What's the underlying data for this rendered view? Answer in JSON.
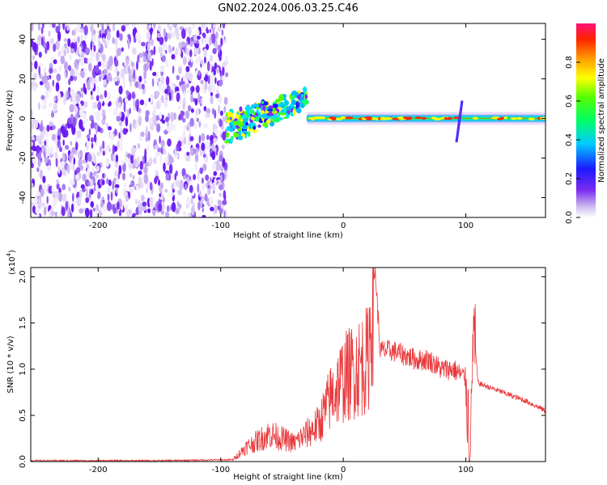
{
  "title": "GN02.2024.006.03.25.C46",
  "chart_data": [
    {
      "type": "heatmap",
      "xlabel": "Height of straight line (km)",
      "ylabel": "Frequency (Hz)",
      "xlim": [
        -255,
        165
      ],
      "ylim": [
        -50,
        48
      ],
      "xticks": [
        -200,
        -100,
        0,
        100
      ],
      "yticks": [
        -40,
        -20,
        0,
        20,
        40
      ],
      "colorbar": {
        "label": "Normalized spectral amplitude",
        "range": [
          0,
          1
        ],
        "ticks": [
          "0.0",
          "0.2",
          "0.4",
          "0.6",
          "0.8"
        ]
      },
      "regions": [
        {
          "name": "noise",
          "x": [
            -255,
            -95
          ],
          "freq": [
            -50,
            48
          ],
          "amplitude": 0.1
        },
        {
          "name": "signal-rising",
          "x": [
            -95,
            -30
          ],
          "freq_center": [
            -5,
            10
          ],
          "amplitude": 0.35
        },
        {
          "name": "signal-stable",
          "x": [
            -30,
            165
          ],
          "freq_center": 0,
          "amplitude": 0.9
        }
      ]
    },
    {
      "type": "line",
      "xlabel": "Height of straight line (km)",
      "ylabel": "SNR (10 * v/v)",
      "yscale_label": "(x10",
      "yscale_exp": "4",
      "xlim": [
        -255,
        165
      ],
      "ylim": [
        0,
        2.1
      ],
      "xticks": [
        -200,
        -100,
        0,
        100
      ],
      "yticks": [
        "0.0",
        "0.5",
        "1.0",
        "1.5",
        "2.0"
      ],
      "series": [
        {
          "color": "#e8383b",
          "x": [
            -255,
            -150,
            -90,
            -80,
            -60,
            -40,
            -20,
            -10,
            0,
            10,
            20,
            26,
            30,
            40,
            50,
            60,
            70,
            80,
            90,
            100,
            104,
            106,
            110,
            130,
            150,
            165
          ],
          "y": [
            0.01,
            0.01,
            0.02,
            0.15,
            0.3,
            0.2,
            0.4,
            0.7,
            0.9,
            1.0,
            1.1,
            2.1,
            1.2,
            1.2,
            1.15,
            1.1,
            1.1,
            1.0,
            1.0,
            0.9,
            0.05,
            1.5,
            0.85,
            0.75,
            0.65,
            0.55
          ]
        }
      ]
    }
  ]
}
